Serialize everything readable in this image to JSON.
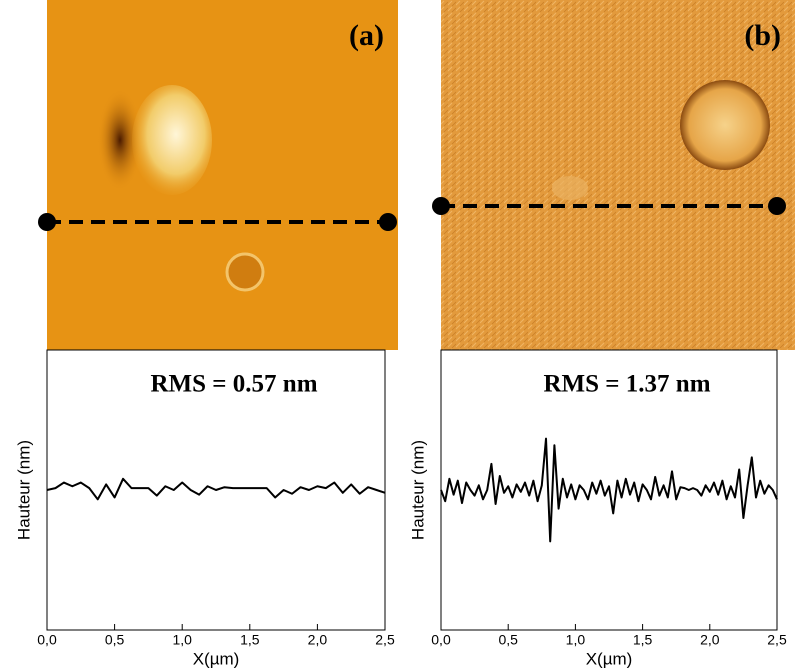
{
  "chart_data": [
    {
      "type": "line",
      "panel_label": "(a)",
      "annotation": "RMS = 0.57 nm",
      "ylabel": "Hauteur (nm)",
      "xlabel": "X(µm)",
      "xlim": [
        0,
        2.5
      ],
      "ylim": [
        -1.5,
        1.5
      ],
      "xticks": [
        {
          "value": 0,
          "label": "0,0"
        },
        {
          "value": 0.5,
          "label": "0,5"
        },
        {
          "value": 1,
          "label": "1,0"
        },
        {
          "value": 1.5,
          "label": "1,5"
        },
        {
          "value": 2,
          "label": "2,0"
        },
        {
          "value": 2.5,
          "label": "2,5"
        }
      ],
      "x": [
        0,
        0.0625,
        0.125,
        0.1875,
        0.25,
        0.3125,
        0.375,
        0.4375,
        0.5,
        0.5625,
        0.625,
        0.6875,
        0.75,
        0.8125,
        0.875,
        0.9375,
        1,
        1.0625,
        1.125,
        1.1875,
        1.25,
        1.3125,
        1.375,
        1.4375,
        1.5,
        1.5625,
        1.625,
        1.6875,
        1.75,
        1.8125,
        1.875,
        1.9375,
        2,
        2.0625,
        2.125,
        2.1875,
        2.25,
        2.3125,
        2.375,
        2.4375,
        2.5
      ],
      "series": [
        {
          "color": "#000000",
          "values": [
            0.0,
            0.02,
            0.08,
            0.04,
            0.08,
            0.02,
            -0.1,
            0.06,
            -0.08,
            0.12,
            0.02,
            0.02,
            0.02,
            -0.06,
            0.04,
            0.0,
            0.08,
            0.0,
            -0.05,
            0.04,
            0.0,
            0.03,
            0.02,
            0.02,
            0.02,
            0.02,
            0.02,
            -0.08,
            0.0,
            -0.04,
            0.03,
            0.0,
            0.04,
            0.02,
            0.08,
            -0.03,
            0.06,
            -0.04,
            0.03,
            0.0,
            -0.03
          ]
        }
      ]
    },
    {
      "type": "line",
      "panel_label": "(b)",
      "annotation": "RMS = 1.37 nm",
      "ylabel": "Hauteur (nm)",
      "xlabel": "X(µm)",
      "xlim": [
        0,
        2.5
      ],
      "ylim": [
        -1.5,
        1.5
      ],
      "xticks": [
        {
          "value": 0,
          "label": "0,0"
        },
        {
          "value": 0.5,
          "label": "0,5"
        },
        {
          "value": 1,
          "label": "1,0"
        },
        {
          "value": 1.5,
          "label": "1,5"
        },
        {
          "value": 2,
          "label": "2,0"
        },
        {
          "value": 2.5,
          "label": "2,5"
        }
      ],
      "x": [
        0,
        0.03125,
        0.0625,
        0.09375,
        0.125,
        0.15625,
        0.1875,
        0.21875,
        0.25,
        0.28125,
        0.3125,
        0.34375,
        0.375,
        0.40625,
        0.4375,
        0.46875,
        0.5,
        0.53125,
        0.5625,
        0.59375,
        0.625,
        0.65625,
        0.6875,
        0.71875,
        0.75,
        0.78125,
        0.8125,
        0.84375,
        0.875,
        0.90625,
        0.9375,
        0.96875,
        1,
        1.03125,
        1.0625,
        1.09375,
        1.125,
        1.15625,
        1.1875,
        1.21875,
        1.25,
        1.28125,
        1.3125,
        1.34375,
        1.375,
        1.40625,
        1.4375,
        1.46875,
        1.5,
        1.53125,
        1.5625,
        1.59375,
        1.625,
        1.65625,
        1.6875,
        1.71875,
        1.75,
        1.78125,
        1.8125,
        1.84375,
        1.875,
        1.90625,
        1.9375,
        1.96875,
        2,
        2.03125,
        2.0625,
        2.09375,
        2.125,
        2.15625,
        2.1875,
        2.21875,
        2.25,
        2.28125,
        2.3125,
        2.34375,
        2.375,
        2.40625,
        2.4375,
        2.46875,
        2.5
      ],
      "series": [
        {
          "color": "#000000",
          "values": [
            0.0,
            -0.12,
            0.12,
            -0.05,
            0.1,
            -0.14,
            0.08,
            0.0,
            -0.06,
            0.05,
            -0.1,
            0.0,
            0.28,
            -0.15,
            0.15,
            -0.03,
            0.04,
            -0.08,
            0.06,
            -0.02,
            0.08,
            -0.06,
            0.1,
            -0.12,
            0.05,
            0.55,
            -0.55,
            0.48,
            -0.2,
            0.12,
            -0.08,
            0.06,
            -0.1,
            0.05,
            0.0,
            -0.1,
            0.08,
            -0.04,
            0.1,
            -0.06,
            0.04,
            -0.25,
            0.1,
            -0.08,
            0.12,
            -0.05,
            0.08,
            -0.12,
            0.06,
            0.0,
            -0.1,
            0.14,
            -0.06,
            0.05,
            -0.08,
            0.2,
            -0.1,
            0.03,
            0.02,
            0.0,
            0.02,
            0.0,
            -0.06,
            0.05,
            -0.02,
            0.08,
            -0.05,
            0.1,
            -0.1,
            0.04,
            -0.08,
            0.22,
            -0.3,
            0.05,
            0.35,
            -0.08,
            0.1,
            -0.04,
            0.05,
            0.0,
            -0.1
          ]
        }
      ]
    }
  ]
}
